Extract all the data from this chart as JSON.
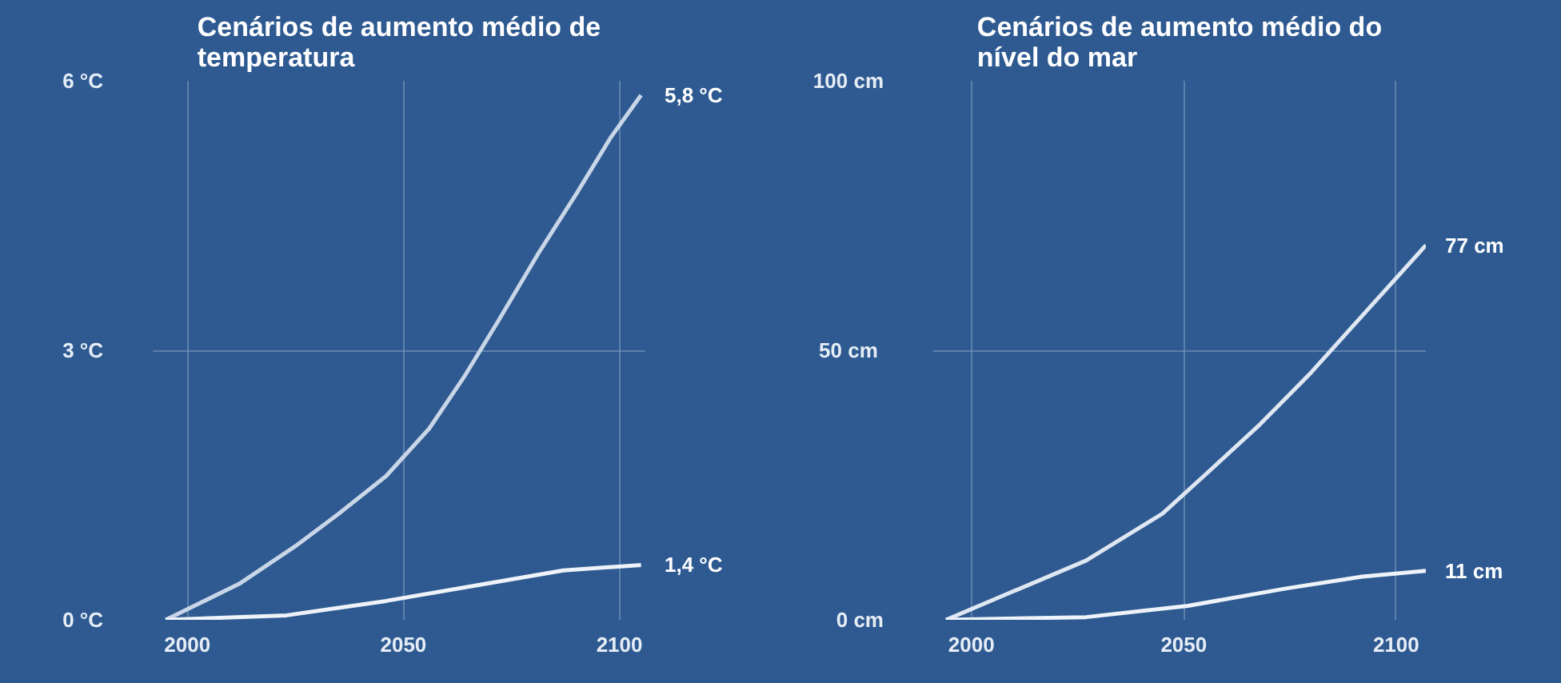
{
  "chart_data": [
    {
      "type": "line",
      "title": "Cenários de aumento médio de\ntemperatura",
      "xlim": [
        1992,
        2106
      ],
      "ylim": [
        0,
        6
      ],
      "xticks": [
        2000,
        2050,
        2100
      ],
      "yticks": [
        {
          "value": 0,
          "label": "0 °C"
        },
        {
          "value": 3,
          "label": "3 °C"
        },
        {
          "value": 6,
          "label": "6 °C"
        }
      ],
      "grid": true,
      "line_style": "solid",
      "series": [
        {
          "color": "#c9d6e8",
          "x": [
            1995,
            2012,
            2025,
            2035,
            2046,
            2056,
            2064,
            2072,
            2081,
            2090,
            2098,
            2105
          ],
          "values": [
            0,
            0.4,
            0.82,
            1.18,
            1.6,
            2.13,
            2.7,
            3.33,
            4.06,
            4.74,
            5.37,
            5.84
          ]
        },
        {
          "color": "#eef3f9",
          "x": [
            1995,
            2023,
            2046,
            2069,
            2087,
            2105
          ],
          "values": [
            0,
            0.05,
            0.21,
            0.4,
            0.55,
            0.61
          ]
        }
      ],
      "annotations": [
        "5,8 °C",
        "1,4 °C"
      ]
    },
    {
      "type": "line",
      "title": "Cenários de aumento médio do\nnível do mar",
      "xlim": [
        1991,
        2107
      ],
      "ylim": [
        0,
        100
      ],
      "xticks": [
        2000,
        2050,
        2100
      ],
      "yticks": [
        {
          "value": 0,
          "label": "0 cm"
        },
        {
          "value": 50,
          "label": "50  cm"
        },
        {
          "value": 100,
          "label": "100 cm"
        }
      ],
      "grid": true,
      "line_style": "solid",
      "series": [
        {
          "color": "#dfe7f2",
          "x": [
            1994,
            2009,
            2027,
            2045,
            2056,
            2068,
            2080,
            2092,
            2107
          ],
          "values": [
            0,
            5,
            11,
            19.7,
            27.6,
            36.3,
            45.9,
            56.4,
            69.5
          ]
        },
        {
          "color": "#eef3f9",
          "x": [
            1994,
            2027,
            2051,
            2074,
            2092,
            2107
          ],
          "values": [
            0,
            0.5,
            2.6,
            5.8,
            8,
            9.1
          ]
        }
      ],
      "annotations": [
        "77 cm",
        "11 cm"
      ]
    }
  ]
}
